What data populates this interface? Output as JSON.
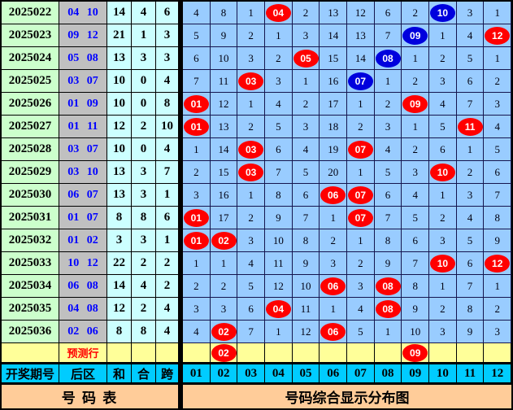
{
  "colors": {
    "period_bg": "#ccffcc",
    "back_bg": "#c0c0c0",
    "stat_bg": "#ccffff",
    "grid_bg": "#99ccff",
    "prediction_bg": "#ffff99",
    "header_bg": "#00ccff",
    "footer_bg": "#ffcc99",
    "red_ball": "#ff0000",
    "blue_ball": "#0000dd",
    "back_text": "#0000ff",
    "prediction_text": "#ff0000"
  },
  "chart_data": {
    "type": "table",
    "title": "号码综合显示分布图",
    "footer_left": "号 码 表",
    "left_headers": [
      "开奖期号",
      "后区",
      "和",
      "合",
      "跨"
    ],
    "ball_headers": [
      "01",
      "02",
      "03",
      "04",
      "05",
      "06",
      "07",
      "08",
      "09",
      "10",
      "11",
      "12"
    ],
    "rows": [
      {
        "period": "2025022",
        "back": "04 10",
        "sum": "14",
        "tail": "4",
        "span": "6",
        "balls": [
          "4",
          "8",
          "1",
          {
            "n": "04",
            "c": "red"
          },
          "2",
          "13",
          "12",
          "6",
          "2",
          {
            "n": "10",
            "c": "blue"
          },
          "3",
          "1"
        ]
      },
      {
        "period": "2025023",
        "back": "09 12",
        "sum": "21",
        "tail": "1",
        "span": "3",
        "balls": [
          "5",
          "9",
          "2",
          "1",
          "3",
          "14",
          "13",
          "7",
          {
            "n": "09",
            "c": "blue"
          },
          "1",
          "4",
          {
            "n": "12",
            "c": "red"
          }
        ]
      },
      {
        "period": "2025024",
        "back": "05 08",
        "sum": "13",
        "tail": "3",
        "span": "3",
        "balls": [
          "6",
          "10",
          "3",
          "2",
          {
            "n": "05",
            "c": "red"
          },
          "15",
          "14",
          {
            "n": "08",
            "c": "blue"
          },
          "1",
          "2",
          "5",
          "1"
        ]
      },
      {
        "period": "2025025",
        "back": "03 07",
        "sum": "10",
        "tail": "0",
        "span": "4",
        "balls": [
          "7",
          "11",
          {
            "n": "03",
            "c": "red"
          },
          "3",
          "1",
          "16",
          {
            "n": "07",
            "c": "blue"
          },
          "1",
          "2",
          "3",
          "6",
          "2"
        ]
      },
      {
        "period": "2025026",
        "back": "01 09",
        "sum": "10",
        "tail": "0",
        "span": "8",
        "balls": [
          {
            "n": "01",
            "c": "red"
          },
          "12",
          "1",
          "4",
          "2",
          "17",
          "1",
          "2",
          {
            "n": "09",
            "c": "red"
          },
          "4",
          "7",
          "3"
        ]
      },
      {
        "period": "2025027",
        "back": "01 11",
        "sum": "12",
        "tail": "2",
        "span": "10",
        "balls": [
          {
            "n": "01",
            "c": "red"
          },
          "13",
          "2",
          "5",
          "3",
          "18",
          "2",
          "3",
          "1",
          "5",
          {
            "n": "11",
            "c": "red"
          },
          "4"
        ]
      },
      {
        "period": "2025028",
        "back": "03 07",
        "sum": "10",
        "tail": "0",
        "span": "4",
        "balls": [
          "1",
          "14",
          {
            "n": "03",
            "c": "red"
          },
          "6",
          "4",
          "19",
          {
            "n": "07",
            "c": "red"
          },
          "4",
          "2",
          "6",
          "1",
          "5"
        ]
      },
      {
        "period": "2025029",
        "back": "03 10",
        "sum": "13",
        "tail": "3",
        "span": "7",
        "balls": [
          "2",
          "15",
          {
            "n": "03",
            "c": "red"
          },
          "7",
          "5",
          "20",
          "1",
          "5",
          "3",
          {
            "n": "10",
            "c": "red"
          },
          "2",
          "6"
        ]
      },
      {
        "period": "2025030",
        "back": "06 07",
        "sum": "13",
        "tail": "3",
        "span": "1",
        "balls": [
          "3",
          "16",
          "1",
          "8",
          "6",
          {
            "n": "06",
            "c": "red"
          },
          {
            "n": "07",
            "c": "red"
          },
          "6",
          "4",
          "1",
          "3",
          "7"
        ]
      },
      {
        "period": "2025031",
        "back": "01 07",
        "sum": "8",
        "tail": "8",
        "span": "6",
        "balls": [
          {
            "n": "01",
            "c": "red"
          },
          "17",
          "2",
          "9",
          "7",
          "1",
          {
            "n": "07",
            "c": "red"
          },
          "7",
          "5",
          "2",
          "4",
          "8"
        ]
      },
      {
        "period": "2025032",
        "back": "01 02",
        "sum": "3",
        "tail": "3",
        "span": "1",
        "balls": [
          {
            "n": "01",
            "c": "red"
          },
          {
            "n": "02",
            "c": "red"
          },
          "3",
          "10",
          "8",
          "2",
          "1",
          "8",
          "6",
          "3",
          "5",
          "9"
        ]
      },
      {
        "period": "2025033",
        "back": "10 12",
        "sum": "22",
        "tail": "2",
        "span": "2",
        "balls": [
          "1",
          "1",
          "4",
          "11",
          "9",
          "3",
          "2",
          "9",
          "7",
          {
            "n": "10",
            "c": "red"
          },
          "6",
          {
            "n": "12",
            "c": "red"
          }
        ]
      },
      {
        "period": "2025034",
        "back": "06 08",
        "sum": "14",
        "tail": "4",
        "span": "2",
        "balls": [
          "2",
          "2",
          "5",
          "12",
          "10",
          {
            "n": "06",
            "c": "red"
          },
          "3",
          {
            "n": "08",
            "c": "red"
          },
          "8",
          "1",
          "7",
          "1"
        ]
      },
      {
        "period": "2025035",
        "back": "04 08",
        "sum": "12",
        "tail": "2",
        "span": "4",
        "balls": [
          "3",
          "3",
          "6",
          {
            "n": "04",
            "c": "red"
          },
          "11",
          "1",
          "4",
          {
            "n": "08",
            "c": "red"
          },
          "9",
          "2",
          "8",
          "2"
        ]
      },
      {
        "period": "2025036",
        "back": "02 06",
        "sum": "8",
        "tail": "8",
        "span": "4",
        "balls": [
          "4",
          {
            "n": "02",
            "c": "red"
          },
          "7",
          "1",
          "12",
          {
            "n": "06",
            "c": "red"
          },
          "5",
          "1",
          "10",
          "3",
          "9",
          "3"
        ]
      }
    ],
    "prediction_row": {
      "label": "预测行",
      "balls": [
        "",
        {
          "n": "02",
          "c": "red"
        },
        "",
        "",
        "",
        "",
        "",
        "",
        {
          "n": "09",
          "c": "red"
        },
        "",
        "",
        ""
      ]
    }
  }
}
